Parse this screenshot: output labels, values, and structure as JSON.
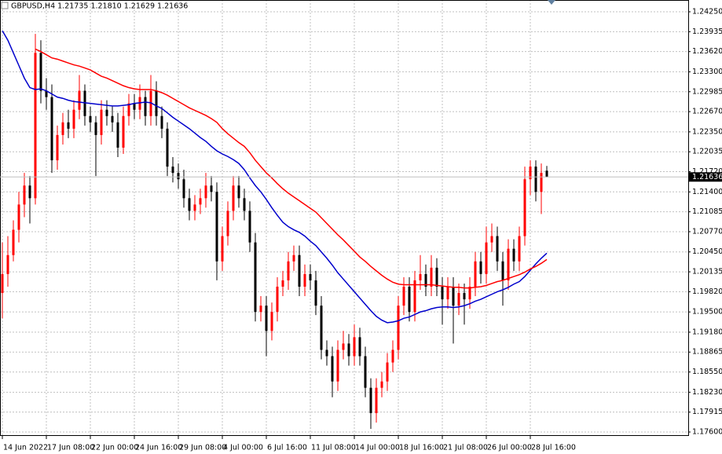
{
  "chart_data": {
    "type": "candlestick",
    "title": "GBPUSD,H4  1.21735 1.21810 1.21629 1.21636",
    "up_color": "#ff0000",
    "down_color": "#000000",
    "grid": true,
    "ylim": [
      1.17538,
      1.24424
    ],
    "yticks": [
      {
        "value": 1.2425,
        "label": "1.24250"
      },
      {
        "value": 1.23935,
        "label": "1.23935"
      },
      {
        "value": 1.2362,
        "label": "1.23620"
      },
      {
        "value": 1.233,
        "label": "1.23300"
      },
      {
        "value": 1.22985,
        "label": "1.22985"
      },
      {
        "value": 1.2267,
        "label": "1.22670"
      },
      {
        "value": 1.2235,
        "label": "1.22350"
      },
      {
        "value": 1.22035,
        "label": "1.22035"
      },
      {
        "value": 1.2172,
        "label": "1.21720"
      },
      {
        "value": 1.214,
        "label": "1.21400"
      },
      {
        "value": 1.21085,
        "label": "1.21085"
      },
      {
        "value": 1.2077,
        "label": "1.20770"
      },
      {
        "value": 1.2045,
        "label": "1.20450"
      },
      {
        "value": 1.20135,
        "label": "1.20135"
      },
      {
        "value": 1.1982,
        "label": "1.19820"
      },
      {
        "value": 1.195,
        "label": "1.19500"
      },
      {
        "value": 1.1918,
        "label": "1.19180"
      },
      {
        "value": 1.18865,
        "label": "1.18865"
      },
      {
        "value": 1.1855,
        "label": "1.18550"
      },
      {
        "value": 1.1823,
        "label": "1.18230"
      },
      {
        "value": 1.17915,
        "label": "1.17915"
      },
      {
        "value": 1.176,
        "label": "1.17600"
      }
    ],
    "last_price": {
      "value": 1.21636,
      "label": "1.21636"
    },
    "categories": [
      "14 Jun 2022",
      null,
      null,
      null,
      null,
      null,
      null,
      null,
      "17 Jun 08:00",
      null,
      null,
      null,
      null,
      null,
      null,
      null,
      "22 Jun 00:00",
      null,
      null,
      null,
      null,
      null,
      null,
      null,
      "24 Jun 16:00",
      null,
      null,
      null,
      null,
      null,
      null,
      null,
      "29 Jun 08:00",
      null,
      null,
      null,
      null,
      null,
      null,
      null,
      "4 Jul 00:00",
      null,
      null,
      null,
      null,
      null,
      null,
      null,
      "6 Jul 16:00",
      null,
      null,
      null,
      null,
      null,
      null,
      null,
      "11 Jul 08:00",
      null,
      null,
      null,
      null,
      null,
      null,
      null,
      "14 Jul 00:00",
      null,
      null,
      null,
      null,
      null,
      null,
      null,
      "18 Jul 16:00",
      null,
      null,
      null,
      null,
      null,
      null,
      null,
      "21 Jul 08:00",
      null,
      null,
      null,
      null,
      null,
      null,
      null,
      "26 Jul 00:00",
      null,
      null,
      null,
      null,
      null,
      null,
      null,
      "28 Jul 16:00",
      null,
      null,
      null
    ],
    "candles": [
      [
        1.198,
        1.206,
        1.194,
        1.201
      ],
      [
        1.201,
        1.207,
        1.199,
        1.204
      ],
      [
        1.204,
        1.2095,
        1.203,
        1.208
      ],
      [
        1.208,
        1.214,
        1.206,
        1.212
      ],
      [
        1.212,
        1.217,
        1.21,
        1.215
      ],
      [
        1.215,
        1.2165,
        1.209,
        1.213
      ],
      [
        1.213,
        1.239,
        1.212,
        1.236
      ],
      [
        1.236,
        1.238,
        1.228,
        1.23
      ],
      [
        1.23,
        1.232,
        1.227,
        1.229
      ],
      [
        1.229,
        1.231,
        1.217,
        1.219
      ],
      [
        1.219,
        1.2245,
        1.2175,
        1.223
      ],
      [
        1.223,
        1.2265,
        1.2215,
        1.225
      ],
      [
        1.225,
        1.227,
        1.2225,
        1.224
      ],
      [
        1.224,
        1.2285,
        1.2225,
        1.227
      ],
      [
        1.227,
        1.2325,
        1.2255,
        1.23
      ],
      [
        1.23,
        1.231,
        1.2245,
        1.226
      ],
      [
        1.226,
        1.2275,
        1.2235,
        1.225
      ],
      [
        1.225,
        1.226,
        1.2165,
        1.223
      ],
      [
        1.223,
        1.2285,
        1.2215,
        1.227
      ],
      [
        1.227,
        1.2285,
        1.2245,
        1.226
      ],
      [
        1.226,
        1.2275,
        1.2235,
        1.225
      ],
      [
        1.225,
        1.2265,
        1.2195,
        1.221
      ],
      [
        1.221,
        1.2275,
        1.22,
        1.226
      ],
      [
        1.226,
        1.2295,
        1.2245,
        1.228
      ],
      [
        1.228,
        1.2295,
        1.2255,
        1.227
      ],
      [
        1.227,
        1.231,
        1.2255,
        1.229
      ],
      [
        1.229,
        1.23,
        1.2245,
        1.226
      ],
      [
        1.226,
        1.2325,
        1.2245,
        1.23
      ],
      [
        1.23,
        1.2315,
        1.2245,
        1.226
      ],
      [
        1.226,
        1.2275,
        1.2225,
        1.224
      ],
      [
        1.224,
        1.225,
        1.2165,
        1.218
      ],
      [
        1.218,
        1.2195,
        1.2155,
        1.217
      ],
      [
        1.217,
        1.2185,
        1.2145,
        1.216
      ],
      [
        1.216,
        1.2175,
        1.2115,
        1.213
      ],
      [
        1.213,
        1.2145,
        1.2095,
        1.211
      ],
      [
        1.211,
        1.2135,
        1.2095,
        1.212
      ],
      [
        1.212,
        1.2145,
        1.2105,
        1.213
      ],
      [
        1.213,
        1.217,
        1.2115,
        1.215
      ],
      [
        1.215,
        1.2165,
        1.2125,
        1.214
      ],
      [
        1.214,
        1.2155,
        1.2,
        1.203
      ],
      [
        1.203,
        1.2085,
        1.2015,
        1.207
      ],
      [
        1.207,
        1.2125,
        1.2055,
        1.211
      ],
      [
        1.211,
        1.2165,
        1.2095,
        1.215
      ],
      [
        1.215,
        1.2165,
        1.2115,
        1.213
      ],
      [
        1.213,
        1.2145,
        1.2095,
        1.211
      ],
      [
        1.211,
        1.2125,
        1.2045,
        1.206
      ],
      [
        1.206,
        1.2075,
        1.1935,
        1.195
      ],
      [
        1.195,
        1.1975,
        1.1935,
        1.196
      ],
      [
        1.196,
        1.1975,
        1.188,
        1.192
      ],
      [
        1.192,
        1.1965,
        1.1905,
        1.195
      ],
      [
        1.195,
        1.2005,
        1.1935,
        1.199
      ],
      [
        1.199,
        1.2015,
        1.1975,
        1.2
      ],
      [
        1.2,
        1.2045,
        1.1985,
        1.203
      ],
      [
        1.203,
        1.2055,
        1.2015,
        1.204
      ],
      [
        1.204,
        1.2055,
        1.1975,
        1.199
      ],
      [
        1.199,
        1.2025,
        1.1975,
        1.201
      ],
      [
        1.201,
        1.2025,
        1.1985,
        1.2
      ],
      [
        1.2,
        1.2015,
        1.1945,
        1.196
      ],
      [
        1.196,
        1.1975,
        1.1875,
        1.189
      ],
      [
        1.189,
        1.1905,
        1.1865,
        1.188
      ],
      [
        1.188,
        1.1895,
        1.1815,
        1.184
      ],
      [
        1.184,
        1.1905,
        1.1825,
        1.189
      ],
      [
        1.189,
        1.192,
        1.1875,
        1.19
      ],
      [
        1.19,
        1.1915,
        1.1865,
        1.188
      ],
      [
        1.188,
        1.193,
        1.1865,
        1.191
      ],
      [
        1.191,
        1.1925,
        1.1865,
        1.188
      ],
      [
        1.188,
        1.1895,
        1.1815,
        1.183
      ],
      [
        1.183,
        1.1845,
        1.1765,
        1.179
      ],
      [
        1.179,
        1.1845,
        1.1775,
        1.183
      ],
      [
        1.183,
        1.1855,
        1.1815,
        1.184
      ],
      [
        1.184,
        1.1885,
        1.1825,
        1.187
      ],
      [
        1.187,
        1.1905,
        1.1855,
        1.189
      ],
      [
        1.189,
        1.1975,
        1.1875,
        1.196
      ],
      [
        1.196,
        1.2005,
        1.1945,
        1.199
      ],
      [
        1.199,
        1.2005,
        1.1935,
        1.195
      ],
      [
        1.195,
        1.2015,
        1.1935,
        1.2
      ],
      [
        1.2,
        1.204,
        1.1985,
        1.201
      ],
      [
        1.201,
        1.2025,
        1.1975,
        1.199
      ],
      [
        1.199,
        1.204,
        1.1975,
        1.202
      ],
      [
        1.202,
        1.2035,
        1.1975,
        1.199
      ],
      [
        1.199,
        1.2005,
        1.193,
        1.197
      ],
      [
        1.197,
        1.2005,
        1.1955,
        1.199
      ],
      [
        1.199,
        1.2005,
        1.19,
        1.196
      ],
      [
        1.196,
        1.1995,
        1.1945,
        1.198
      ],
      [
        1.198,
        1.1995,
        1.193,
        1.197
      ],
      [
        1.197,
        1.2005,
        1.1955,
        1.199
      ],
      [
        1.199,
        1.2045,
        1.1975,
        1.203
      ],
      [
        1.203,
        1.2045,
        1.1995,
        1.201
      ],
      [
        1.201,
        1.2085,
        1.1995,
        1.206
      ],
      [
        1.206,
        1.209,
        1.2045,
        1.207
      ],
      [
        1.207,
        1.2085,
        1.2015,
        1.203
      ],
      [
        1.203,
        1.2045,
        1.196,
        1.2
      ],
      [
        1.2,
        1.2065,
        1.1985,
        1.205
      ],
      [
        1.205,
        1.2065,
        1.2015,
        1.203
      ],
      [
        1.203,
        1.2085,
        1.2015,
        1.207
      ],
      [
        1.207,
        1.218,
        1.2055,
        1.216
      ],
      [
        1.216,
        1.219,
        1.2135,
        1.218
      ],
      [
        1.218,
        1.219,
        1.2125,
        1.214
      ],
      [
        1.214,
        1.2185,
        1.2105,
        1.217
      ],
      [
        1.21735,
        1.2181,
        1.21629,
        1.21636
      ]
    ],
    "series": [
      {
        "color": "#0000cc",
        "values": [
          1.2395,
          1.238,
          1.236,
          1.234,
          1.232,
          1.2305,
          1.2302,
          1.2303,
          1.23,
          1.2295,
          1.229,
          1.2288,
          1.2285,
          1.2283,
          1.2282,
          1.2281,
          1.228,
          1.2279,
          1.2278,
          1.2277,
          1.2276,
          1.2276,
          1.2277,
          1.2278,
          1.228,
          1.2281,
          1.2282,
          1.2281,
          1.2276,
          1.2272,
          1.2265,
          1.2258,
          1.2252,
          1.2246,
          1.224,
          1.2233,
          1.2226,
          1.222,
          1.2212,
          1.2205,
          1.22,
          1.2196,
          1.2191,
          1.2185,
          1.2175,
          1.2162,
          1.215,
          1.214,
          1.2128,
          1.2115,
          1.2103,
          1.2092,
          1.2085,
          1.208,
          1.2076,
          1.207,
          1.2062,
          1.2055,
          1.2045,
          1.2035,
          1.2024,
          1.2012,
          1.2002,
          1.1992,
          1.1982,
          1.1972,
          1.1962,
          1.1952,
          1.1943,
          1.1937,
          1.1933,
          1.1934,
          1.1936,
          1.194,
          1.1942,
          1.1946,
          1.195,
          1.1952,
          1.1955,
          1.1957,
          1.1958,
          1.1958,
          1.1957,
          1.1958,
          1.196,
          1.1963,
          1.1967,
          1.197,
          1.1974,
          1.1978,
          1.1982,
          1.1985,
          1.1989,
          1.1994,
          1.1998,
          1.2006,
          1.2016,
          1.2026,
          1.2035,
          1.2043
        ]
      },
      {
        "color": "#ff0000",
        "values": [
          null,
          null,
          null,
          null,
          null,
          null,
          1.2366,
          1.2362,
          1.2357,
          1.2352,
          1.235,
          1.2347,
          1.2344,
          1.2341,
          1.2339,
          1.2336,
          1.2333,
          1.2328,
          1.2323,
          1.232,
          1.2316,
          1.2312,
          1.2308,
          1.2305,
          1.2303,
          1.2302,
          1.2302,
          1.2302,
          1.23,
          1.2297,
          1.2293,
          1.2288,
          1.2283,
          1.2278,
          1.2273,
          1.2269,
          1.2265,
          1.2261,
          1.2256,
          1.225,
          1.224,
          1.2232,
          1.2225,
          1.2218,
          1.2212,
          1.2202,
          1.219,
          1.218,
          1.217,
          1.2162,
          1.2153,
          1.2145,
          1.2138,
          1.2132,
          1.2126,
          1.212,
          1.2114,
          1.2108,
          1.2099,
          1.209,
          1.2081,
          1.2072,
          1.2064,
          1.2055,
          1.2046,
          1.2037,
          1.203,
          1.2022,
          1.2015,
          1.2008,
          1.2002,
          1.1997,
          1.1994,
          1.1993,
          1.1993,
          1.1993,
          1.1993,
          1.1993,
          1.1993,
          1.1992,
          1.1991,
          1.199,
          1.1989,
          1.1989,
          1.1988,
          1.1988,
          1.1989,
          1.199,
          1.1992,
          1.1995,
          1.1998,
          1.2,
          1.2003,
          1.2006,
          1.2009,
          1.2013,
          1.2018,
          1.2022,
          1.2027,
          1.2033
        ]
      }
    ]
  }
}
